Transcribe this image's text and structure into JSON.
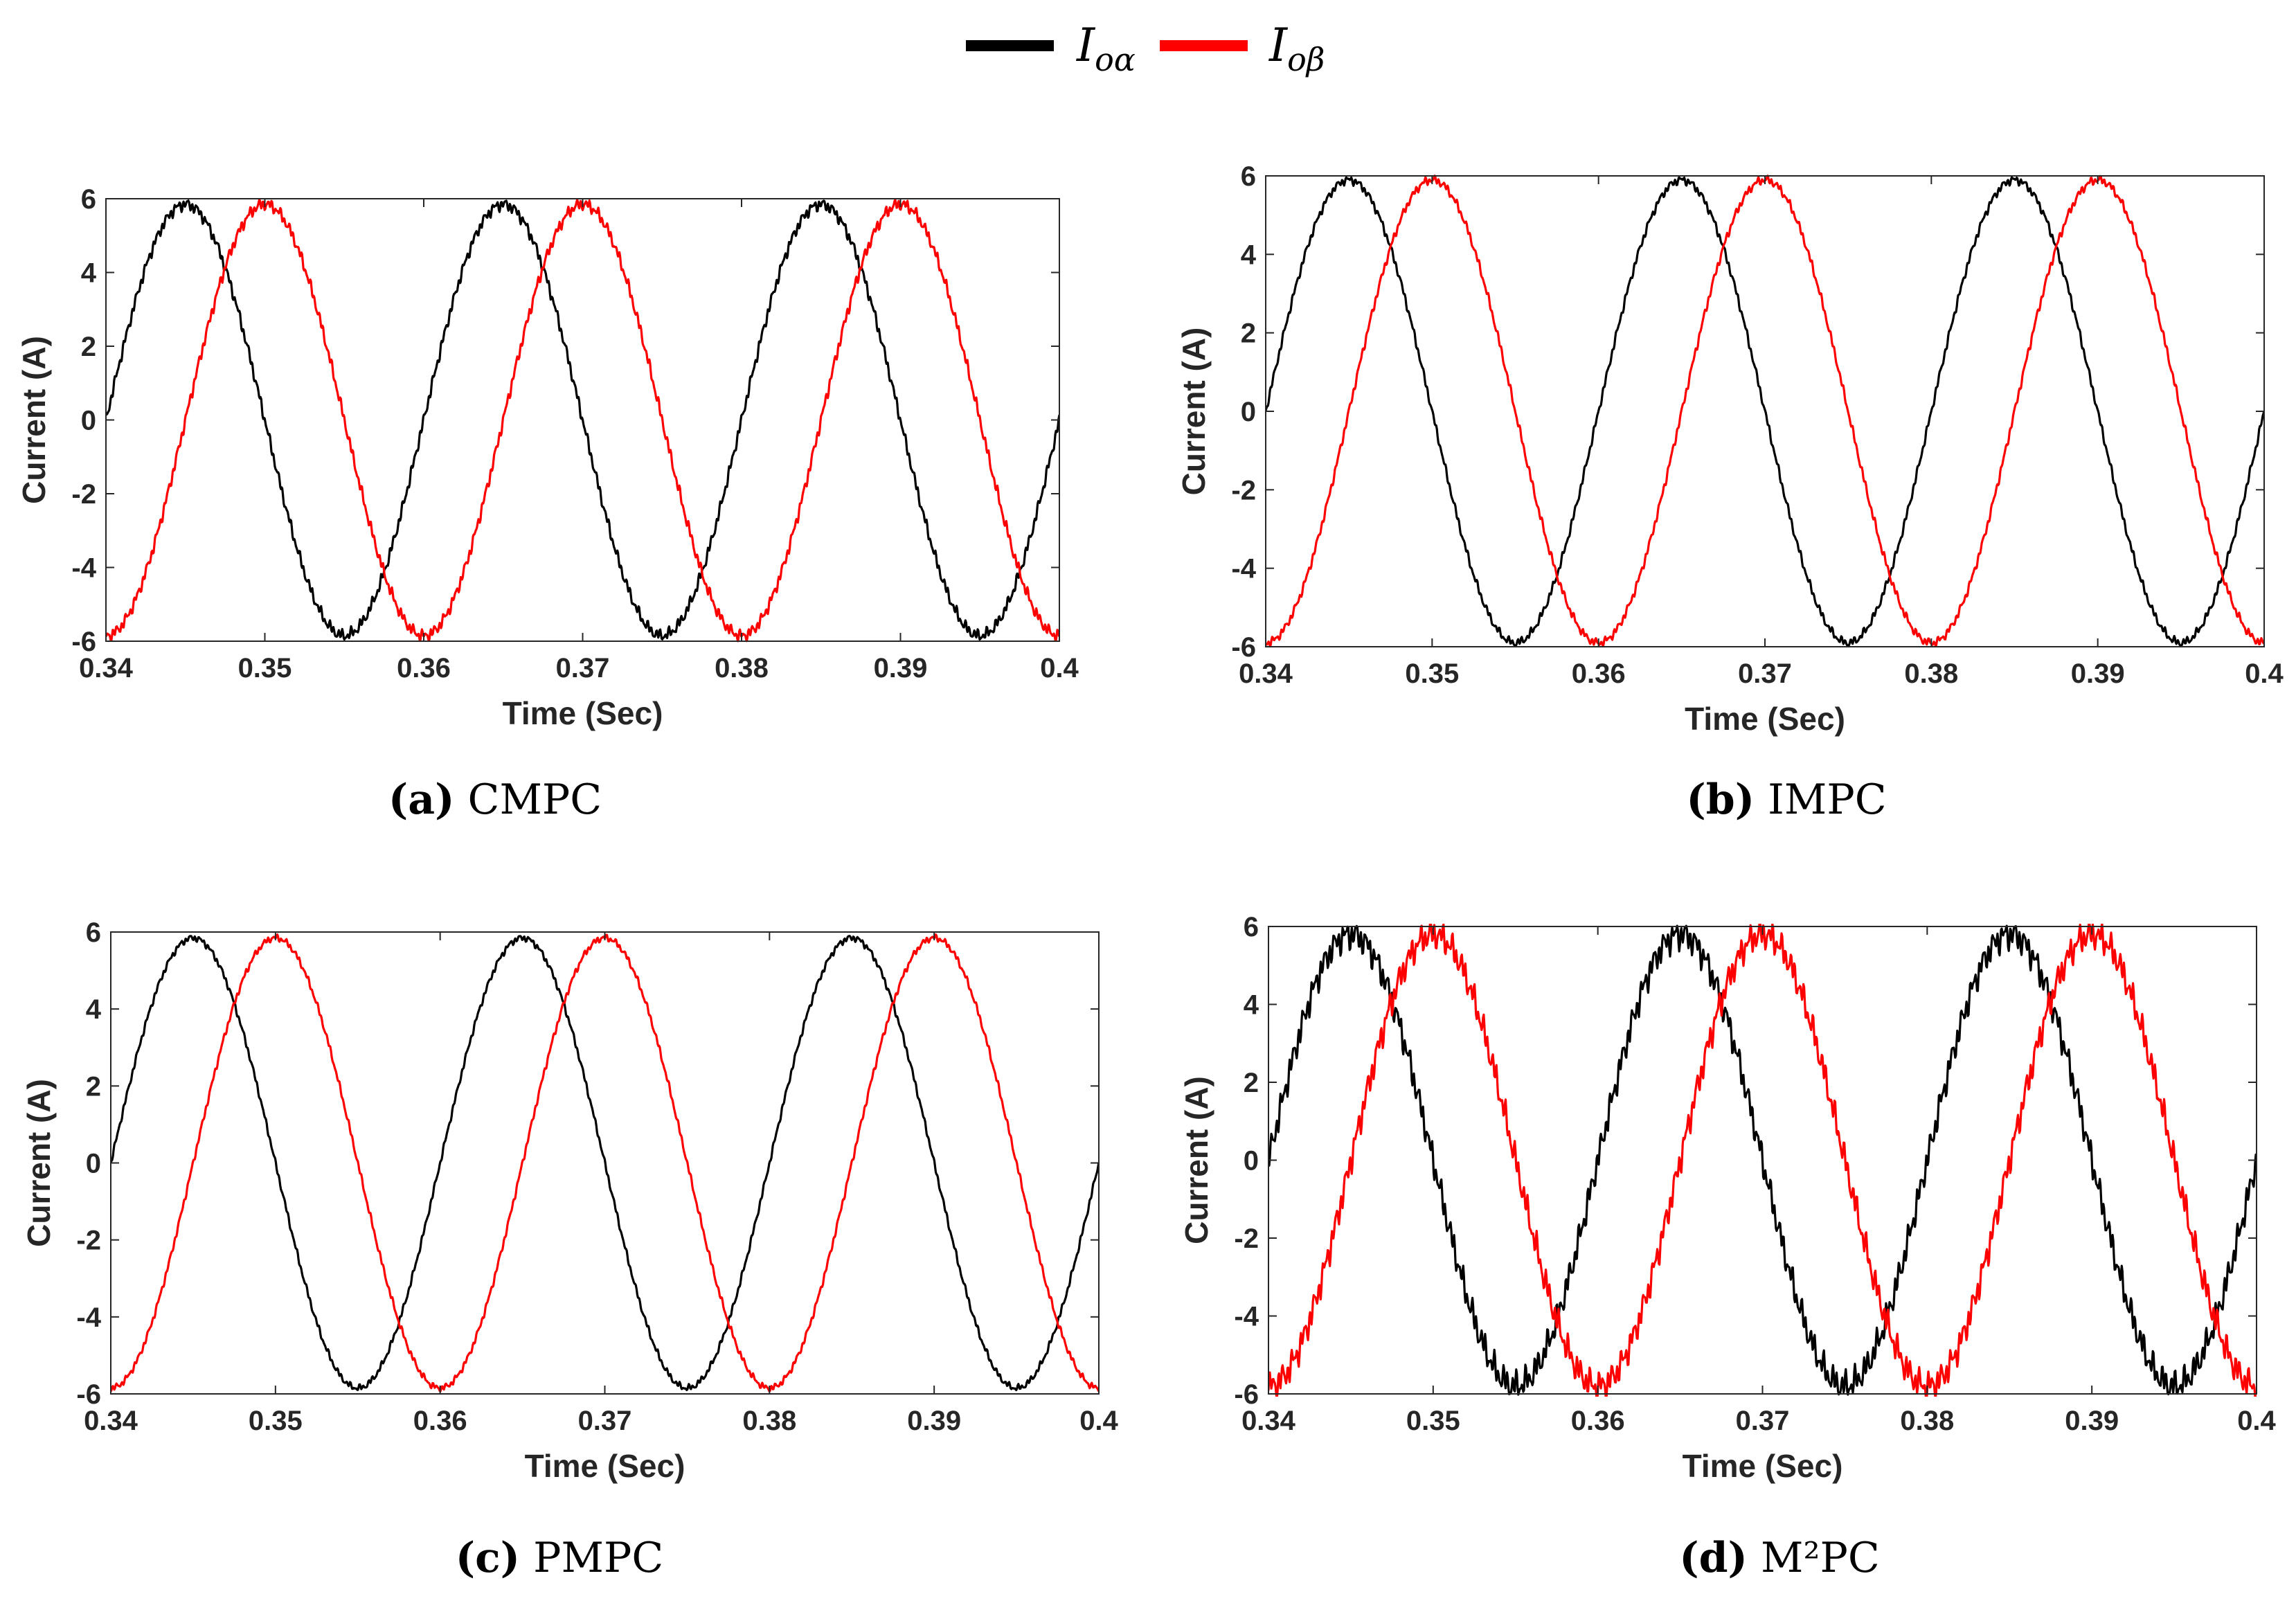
{
  "legend": {
    "items": [
      {
        "symbol": "I",
        "subscript": "oα",
        "color": "#000000"
      },
      {
        "symbol": "I",
        "subscript": "oβ",
        "color": "#ff0000"
      }
    ]
  },
  "chart_data": [
    {
      "type": "line",
      "panel": "a",
      "caption_letter": "(a)",
      "caption_text": "CMPC",
      "xlabel": "Time (Sec)",
      "ylabel": "Current (A)",
      "xlim": [
        0.34,
        0.4
      ],
      "ylim": [
        -6,
        6
      ],
      "xticks": [
        "0.34",
        "0.35",
        "0.36",
        "0.37",
        "0.38",
        "0.39",
        "0.4"
      ],
      "yticks": [
        "-6",
        "-4",
        "-2",
        "0",
        "2",
        "4",
        "6"
      ],
      "frequency_hz": 50,
      "ripple": 0.15,
      "series": [
        {
          "name": "Ioα",
          "color": "#000000",
          "amplitude": 5.85,
          "phase_deg": 0
        },
        {
          "name": "Ioβ",
          "color": "#ff0000",
          "amplitude": 5.85,
          "phase_deg": -90
        }
      ]
    },
    {
      "type": "line",
      "panel": "b",
      "caption_letter": "(b)",
      "caption_text": "IMPC",
      "xlabel": "Time (Sec)",
      "ylabel": "Current (A)",
      "xlim": [
        0.34,
        0.4
      ],
      "ylim": [
        -6,
        6
      ],
      "xticks": [
        "0.34",
        "0.35",
        "0.36",
        "0.37",
        "0.38",
        "0.39",
        "0.4"
      ],
      "yticks": [
        "-6",
        "-4",
        "-2",
        "0",
        "2",
        "4",
        "6"
      ],
      "frequency_hz": 50,
      "ripple": 0.1,
      "series": [
        {
          "name": "Ioα",
          "color": "#000000",
          "amplitude": 5.9,
          "phase_deg": 0
        },
        {
          "name": "Ioβ",
          "color": "#ff0000",
          "amplitude": 5.9,
          "phase_deg": -90
        }
      ]
    },
    {
      "type": "line",
      "panel": "c",
      "caption_letter": "(c)",
      "caption_text": "PMPC",
      "xlabel": "Time (Sec)",
      "ylabel": "Current (A)",
      "xlim": [
        0.34,
        0.4
      ],
      "ylim": [
        -6,
        6
      ],
      "xticks": [
        "0.34",
        "0.35",
        "0.36",
        "0.37",
        "0.38",
        "0.39",
        "0.4"
      ],
      "yticks": [
        "-6",
        "-4",
        "-2",
        "0",
        "2",
        "4",
        "6"
      ],
      "frequency_hz": 50,
      "ripple": 0.08,
      "series": [
        {
          "name": "Ioα",
          "color": "#000000",
          "amplitude": 5.85,
          "phase_deg": 0
        },
        {
          "name": "Ioβ",
          "color": "#ff0000",
          "amplitude": 5.85,
          "phase_deg": -90
        }
      ]
    },
    {
      "type": "line",
      "panel": "d",
      "caption_letter": "(d)",
      "caption_text": "M²PC",
      "xlabel": "Time (Sec)",
      "ylabel": "Current (A)",
      "xlim": [
        0.34,
        0.4
      ],
      "ylim": [
        -6,
        6
      ],
      "xticks": [
        "0.34",
        "0.35",
        "0.36",
        "0.37",
        "0.38",
        "0.39",
        "0.4"
      ],
      "yticks": [
        "-6",
        "-4",
        "-2",
        "0",
        "2",
        "4",
        "6"
      ],
      "frequency_hz": 50,
      "ripple": 0.35,
      "series": [
        {
          "name": "Ioα",
          "color": "#000000",
          "amplitude": 5.8,
          "phase_deg": 0
        },
        {
          "name": "Ioβ",
          "color": "#ff0000",
          "amplitude": 5.8,
          "phase_deg": -90
        }
      ]
    }
  ]
}
